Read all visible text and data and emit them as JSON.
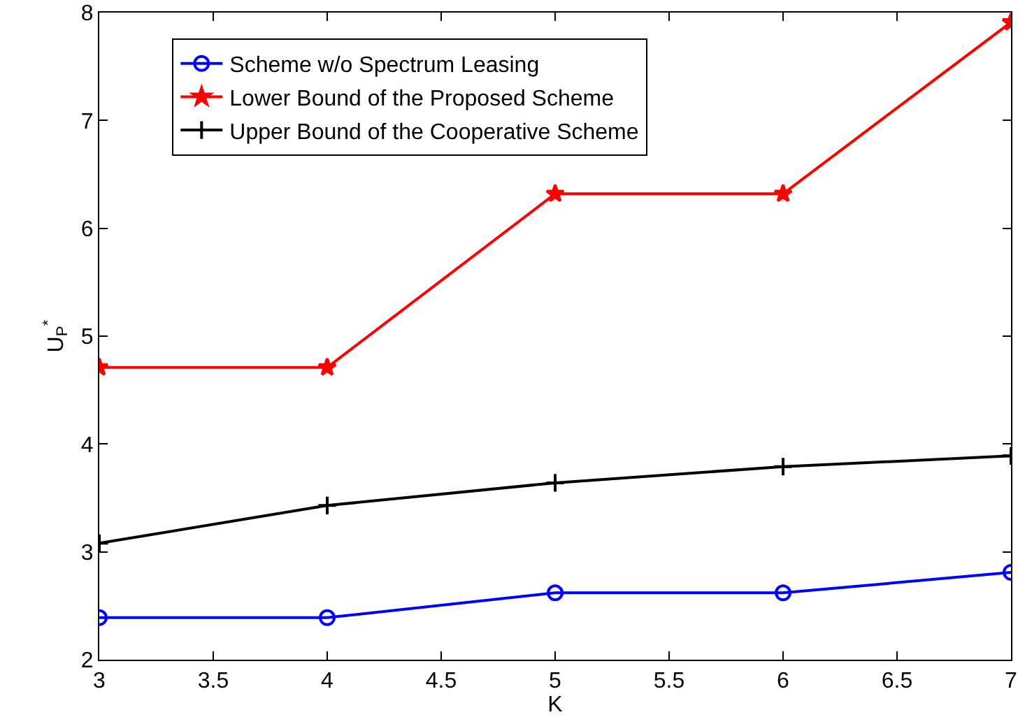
{
  "chart_data": {
    "type": "line",
    "xlabel": "K",
    "ylabel": "U$_{P}$$^{*}$",
    "x": [
      3,
      4,
      5,
      6,
      7
    ],
    "xlim": [
      3,
      7
    ],
    "xticks": [
      3,
      3.5,
      4,
      4.5,
      5,
      5.5,
      6,
      6.5,
      7
    ],
    "ylim": [
      2,
      8
    ],
    "yticks": [
      2,
      3,
      4,
      5,
      6,
      7,
      8
    ],
    "grid": false,
    "legend": "top left",
    "series": [
      {
        "name": "Scheme w/o Spectrum Leasing",
        "color": "#0000ff",
        "marker": "circle",
        "values": [
          2.39,
          2.39,
          2.62,
          2.62,
          2.81
        ]
      },
      {
        "name": "Lower Bound of the Proposed Scheme",
        "color": "#ff0000",
        "marker": "star",
        "values": [
          4.71,
          4.71,
          6.32,
          6.32,
          7.91
        ]
      },
      {
        "name": "Upper Bound of the Cooperative Scheme",
        "color": "#000000",
        "marker": "cross",
        "values": [
          3.08,
          3.43,
          3.64,
          3.79,
          3.89
        ]
      }
    ]
  }
}
